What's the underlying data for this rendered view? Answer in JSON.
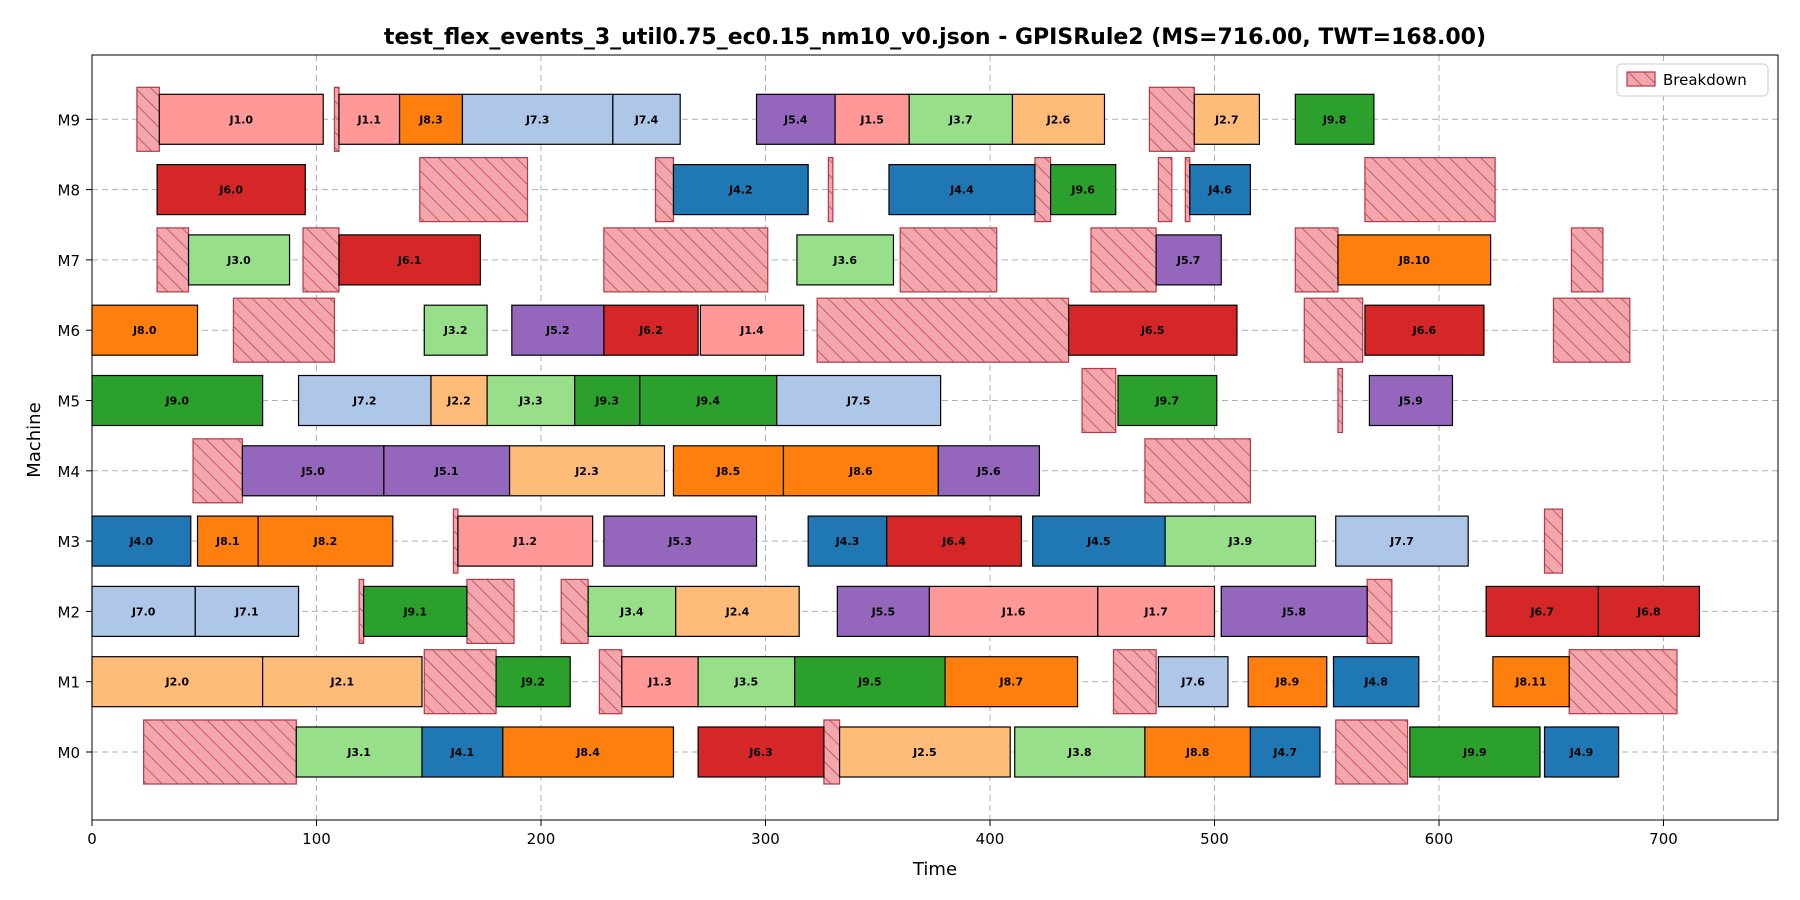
{
  "chart_data": {
    "type": "gantt",
    "title": "test_flex_events_3_util0.75_ec0.15_nm10_v0.json - GPISRule2 (MS=716.00, TWT=168.00)",
    "xlabel": "Time",
    "ylabel": "Machine",
    "xlim": [
      0,
      751
    ],
    "x_ticks": [
      0,
      100,
      200,
      300,
      400,
      500,
      600,
      700
    ],
    "machines": [
      "M0",
      "M1",
      "M2",
      "M3",
      "M4",
      "M5",
      "M6",
      "M7",
      "M8",
      "M9"
    ],
    "grid": true,
    "legend": {
      "position": "top-right",
      "entries": [
        "Breakdown"
      ]
    },
    "job_colors": {
      "J0": "#aec7e8",
      "J1": "#ff9896",
      "J2": "#ffbb78",
      "J3": "#98df8a",
      "J4": "#1f77b4",
      "J5": "#9467bd",
      "J6": "#d62728",
      "J7": "#aec7e8",
      "J8": "#ff7f0e",
      "J9": "#2ca02c"
    },
    "breakdown_color": "#f4a6ad",
    "breakdown_edge": "#b03a48",
    "tasks": [
      {
        "m": 0,
        "s": 91,
        "e": 147,
        "label": "J3.1",
        "job": "J3"
      },
      {
        "m": 0,
        "s": 147,
        "e": 183,
        "label": "J4.1",
        "job": "J4"
      },
      {
        "m": 0,
        "s": 183,
        "e": 259,
        "label": "J8.4",
        "job": "J8"
      },
      {
        "m": 0,
        "s": 270,
        "e": 326,
        "label": "J6.3",
        "job": "J6"
      },
      {
        "m": 0,
        "s": 333,
        "e": 409,
        "label": "J2.5",
        "job": "J2"
      },
      {
        "m": 0,
        "s": 411,
        "e": 469,
        "label": "J3.8",
        "job": "J3"
      },
      {
        "m": 0,
        "s": 469,
        "e": 516,
        "label": "J8.8",
        "job": "J8"
      },
      {
        "m": 0,
        "s": 516,
        "e": 547,
        "label": "J4.7",
        "job": "J4"
      },
      {
        "m": 0,
        "s": 587,
        "e": 645,
        "label": "J9.9",
        "job": "J9"
      },
      {
        "m": 0,
        "s": 647,
        "e": 680,
        "label": "J4.9",
        "job": "J4"
      },
      {
        "m": 1,
        "s": 0,
        "e": 76,
        "label": "J2.0",
        "job": "J2"
      },
      {
        "m": 1,
        "s": 76,
        "e": 147,
        "label": "J2.1",
        "job": "J2"
      },
      {
        "m": 1,
        "s": 180,
        "e": 213,
        "label": "J9.2",
        "job": "J9"
      },
      {
        "m": 1,
        "s": 236,
        "e": 270,
        "label": "J1.3",
        "job": "J1"
      },
      {
        "m": 1,
        "s": 270,
        "e": 313,
        "label": "J3.5",
        "job": "J3"
      },
      {
        "m": 1,
        "s": 313,
        "e": 380,
        "label": "J9.5",
        "job": "J9"
      },
      {
        "m": 1,
        "s": 380,
        "e": 439,
        "label": "J8.7",
        "job": "J8"
      },
      {
        "m": 1,
        "s": 475,
        "e": 506,
        "label": "J7.6",
        "job": "J7"
      },
      {
        "m": 1,
        "s": 515,
        "e": 550,
        "label": "J8.9",
        "job": "J8"
      },
      {
        "m": 1,
        "s": 553,
        "e": 591,
        "label": "J4.8",
        "job": "J4"
      },
      {
        "m": 1,
        "s": 624,
        "e": 658,
        "label": "J8.11",
        "job": "J8"
      },
      {
        "m": 2,
        "s": 0,
        "e": 46,
        "label": "J7.0",
        "job": "J7"
      },
      {
        "m": 2,
        "s": 46,
        "e": 92,
        "label": "J7.1",
        "job": "J7"
      },
      {
        "m": 2,
        "s": 121,
        "e": 167,
        "label": "J9.1",
        "job": "J9"
      },
      {
        "m": 2,
        "s": 221,
        "e": 260,
        "label": "J3.4",
        "job": "J3"
      },
      {
        "m": 2,
        "s": 260,
        "e": 315,
        "label": "J2.4",
        "job": "J2"
      },
      {
        "m": 2,
        "s": 332,
        "e": 373,
        "label": "J5.5",
        "job": "J5"
      },
      {
        "m": 2,
        "s": 373,
        "e": 448,
        "label": "J1.6",
        "job": "J1"
      },
      {
        "m": 2,
        "s": 448,
        "e": 500,
        "label": "J1.7",
        "job": "J1"
      },
      {
        "m": 2,
        "s": 503,
        "e": 568,
        "label": "J5.8",
        "job": "J5"
      },
      {
        "m": 2,
        "s": 621,
        "e": 671,
        "label": "J6.7",
        "job": "J6"
      },
      {
        "m": 2,
        "s": 671,
        "e": 716,
        "label": "J6.8",
        "job": "J6"
      },
      {
        "m": 3,
        "s": 0,
        "e": 44,
        "label": "J4.0",
        "job": "J4"
      },
      {
        "m": 3,
        "s": 47,
        "e": 74,
        "label": "J8.1",
        "job": "J8"
      },
      {
        "m": 3,
        "s": 74,
        "e": 134,
        "label": "J8.2",
        "job": "J8"
      },
      {
        "m": 3,
        "s": 163,
        "e": 223,
        "label": "J1.2",
        "job": "J1"
      },
      {
        "m": 3,
        "s": 228,
        "e": 296,
        "label": "J5.3",
        "job": "J5"
      },
      {
        "m": 3,
        "s": 319,
        "e": 354,
        "label": "J4.3",
        "job": "J4"
      },
      {
        "m": 3,
        "s": 354,
        "e": 414,
        "label": "J6.4",
        "job": "J6"
      },
      {
        "m": 3,
        "s": 419,
        "e": 478,
        "label": "J4.5",
        "job": "J4"
      },
      {
        "m": 3,
        "s": 478,
        "e": 545,
        "label": "J3.9",
        "job": "J3"
      },
      {
        "m": 3,
        "s": 554,
        "e": 613,
        "label": "J7.7",
        "job": "J7"
      },
      {
        "m": 4,
        "s": 67,
        "e": 130,
        "label": "J5.0",
        "job": "J5"
      },
      {
        "m": 4,
        "s": 130,
        "e": 186,
        "label": "J5.1",
        "job": "J5"
      },
      {
        "m": 4,
        "s": 186,
        "e": 255,
        "label": "J2.3",
        "job": "J2"
      },
      {
        "m": 4,
        "s": 259,
        "e": 308,
        "label": "J8.5",
        "job": "J8"
      },
      {
        "m": 4,
        "s": 308,
        "e": 377,
        "label": "J8.6",
        "job": "J8"
      },
      {
        "m": 4,
        "s": 377,
        "e": 422,
        "label": "J5.6",
        "job": "J5"
      },
      {
        "m": 5,
        "s": 0,
        "e": 76,
        "label": "J9.0",
        "job": "J9"
      },
      {
        "m": 5,
        "s": 92,
        "e": 151,
        "label": "J7.2",
        "job": "J7"
      },
      {
        "m": 5,
        "s": 151,
        "e": 176,
        "label": "J2.2",
        "job": "J2"
      },
      {
        "m": 5,
        "s": 176,
        "e": 215,
        "label": "J3.3",
        "job": "J3"
      },
      {
        "m": 5,
        "s": 215,
        "e": 244,
        "label": "J9.3",
        "job": "J9"
      },
      {
        "m": 5,
        "s": 244,
        "e": 305,
        "label": "J9.4",
        "job": "J9"
      },
      {
        "m": 5,
        "s": 305,
        "e": 378,
        "label": "J7.5",
        "job": "J7"
      },
      {
        "m": 5,
        "s": 457,
        "e": 501,
        "label": "J9.7",
        "job": "J9"
      },
      {
        "m": 5,
        "s": 569,
        "e": 606,
        "label": "J5.9",
        "job": "J5"
      },
      {
        "m": 6,
        "s": 0,
        "e": 47,
        "label": "J8.0",
        "job": "J8"
      },
      {
        "m": 6,
        "s": 148,
        "e": 176,
        "label": "J3.2",
        "job": "J3"
      },
      {
        "m": 6,
        "s": 187,
        "e": 228,
        "label": "J5.2",
        "job": "J5"
      },
      {
        "m": 6,
        "s": 228,
        "e": 270,
        "label": "J6.2",
        "job": "J6"
      },
      {
        "m": 6,
        "s": 271,
        "e": 317,
        "label": "J1.4",
        "job": "J1"
      },
      {
        "m": 6,
        "s": 435,
        "e": 510,
        "label": "J6.5",
        "job": "J6"
      },
      {
        "m": 6,
        "s": 567,
        "e": 620,
        "label": "J6.6",
        "job": "J6"
      },
      {
        "m": 7,
        "s": 43,
        "e": 88,
        "label": "J3.0",
        "job": "J3"
      },
      {
        "m": 7,
        "s": 110,
        "e": 173,
        "label": "J6.1",
        "job": "J6"
      },
      {
        "m": 7,
        "s": 314,
        "e": 357,
        "label": "J3.6",
        "job": "J3"
      },
      {
        "m": 7,
        "s": 474,
        "e": 503,
        "label": "J5.7",
        "job": "J5"
      },
      {
        "m": 7,
        "s": 555,
        "e": 623,
        "label": "J8.10",
        "job": "J8"
      },
      {
        "m": 8,
        "s": 29,
        "e": 95,
        "label": "J6.0",
        "job": "J6"
      },
      {
        "m": 8,
        "s": 259,
        "e": 319,
        "label": "J4.2",
        "job": "J4"
      },
      {
        "m": 8,
        "s": 355,
        "e": 420,
        "label": "J4.4",
        "job": "J4"
      },
      {
        "m": 8,
        "s": 427,
        "e": 456,
        "label": "J9.6",
        "job": "J9"
      },
      {
        "m": 8,
        "s": 489,
        "e": 516,
        "label": "J4.6",
        "job": "J4"
      },
      {
        "m": 9,
        "s": 30,
        "e": 103,
        "label": "J1.0",
        "job": "J1"
      },
      {
        "m": 9,
        "s": 110,
        "e": 137,
        "label": "J1.1",
        "job": "J1"
      },
      {
        "m": 9,
        "s": 137,
        "e": 165,
        "label": "J8.3",
        "job": "J8"
      },
      {
        "m": 9,
        "s": 165,
        "e": 232,
        "label": "J7.3",
        "job": "J7"
      },
      {
        "m": 9,
        "s": 232,
        "e": 262,
        "label": "J7.4",
        "job": "J7"
      },
      {
        "m": 9,
        "s": 296,
        "e": 331,
        "label": "J5.4",
        "job": "J5"
      },
      {
        "m": 9,
        "s": 331,
        "e": 364,
        "label": "J1.5",
        "job": "J1"
      },
      {
        "m": 9,
        "s": 364,
        "e": 410,
        "label": "J3.7",
        "job": "J3"
      },
      {
        "m": 9,
        "s": 410,
        "e": 451,
        "label": "J2.6",
        "job": "J2"
      },
      {
        "m": 9,
        "s": 491,
        "e": 520,
        "label": "J2.7",
        "job": "J2"
      },
      {
        "m": 9,
        "s": 536,
        "e": 571,
        "label": "J9.8",
        "job": "J9"
      }
    ],
    "breakdowns": [
      {
        "m": 0,
        "s": 23,
        "e": 91
      },
      {
        "m": 0,
        "s": 326,
        "e": 333
      },
      {
        "m": 0,
        "s": 554,
        "e": 586
      },
      {
        "m": 1,
        "s": 148,
        "e": 180
      },
      {
        "m": 1,
        "s": 226,
        "e": 236
      },
      {
        "m": 1,
        "s": 455,
        "e": 474
      },
      {
        "m": 1,
        "s": 658,
        "e": 706
      },
      {
        "m": 2,
        "s": 119,
        "e": 121
      },
      {
        "m": 2,
        "s": 167,
        "e": 188
      },
      {
        "m": 2,
        "s": 209,
        "e": 221
      },
      {
        "m": 2,
        "s": 568,
        "e": 579
      },
      {
        "m": 3,
        "s": 161,
        "e": 163
      },
      {
        "m": 3,
        "s": 647,
        "e": 655
      },
      {
        "m": 4,
        "s": 45,
        "e": 67
      },
      {
        "m": 4,
        "s": 469,
        "e": 516
      },
      {
        "m": 5,
        "s": 441,
        "e": 456
      },
      {
        "m": 5,
        "s": 555,
        "e": 557
      },
      {
        "m": 6,
        "s": 63,
        "e": 108
      },
      {
        "m": 6,
        "s": 323,
        "e": 435
      },
      {
        "m": 6,
        "s": 540,
        "e": 566
      },
      {
        "m": 6,
        "s": 651,
        "e": 685
      },
      {
        "m": 7,
        "s": 29,
        "e": 43
      },
      {
        "m": 7,
        "s": 94,
        "e": 110
      },
      {
        "m": 7,
        "s": 228,
        "e": 301
      },
      {
        "m": 7,
        "s": 360,
        "e": 403
      },
      {
        "m": 7,
        "s": 445,
        "e": 474
      },
      {
        "m": 7,
        "s": 536,
        "e": 555
      },
      {
        "m": 7,
        "s": 659,
        "e": 673
      },
      {
        "m": 8,
        "s": 146,
        "e": 194
      },
      {
        "m": 8,
        "s": 251,
        "e": 259
      },
      {
        "m": 8,
        "s": 328,
        "e": 330
      },
      {
        "m": 8,
        "s": 420,
        "e": 427
      },
      {
        "m": 8,
        "s": 475,
        "e": 481
      },
      {
        "m": 8,
        "s": 487,
        "e": 489
      },
      {
        "m": 8,
        "s": 567,
        "e": 625
      },
      {
        "m": 9,
        "s": 20,
        "e": 30
      },
      {
        "m": 9,
        "s": 108,
        "e": 110
      },
      {
        "m": 9,
        "s": 471,
        "e": 491
      }
    ]
  }
}
